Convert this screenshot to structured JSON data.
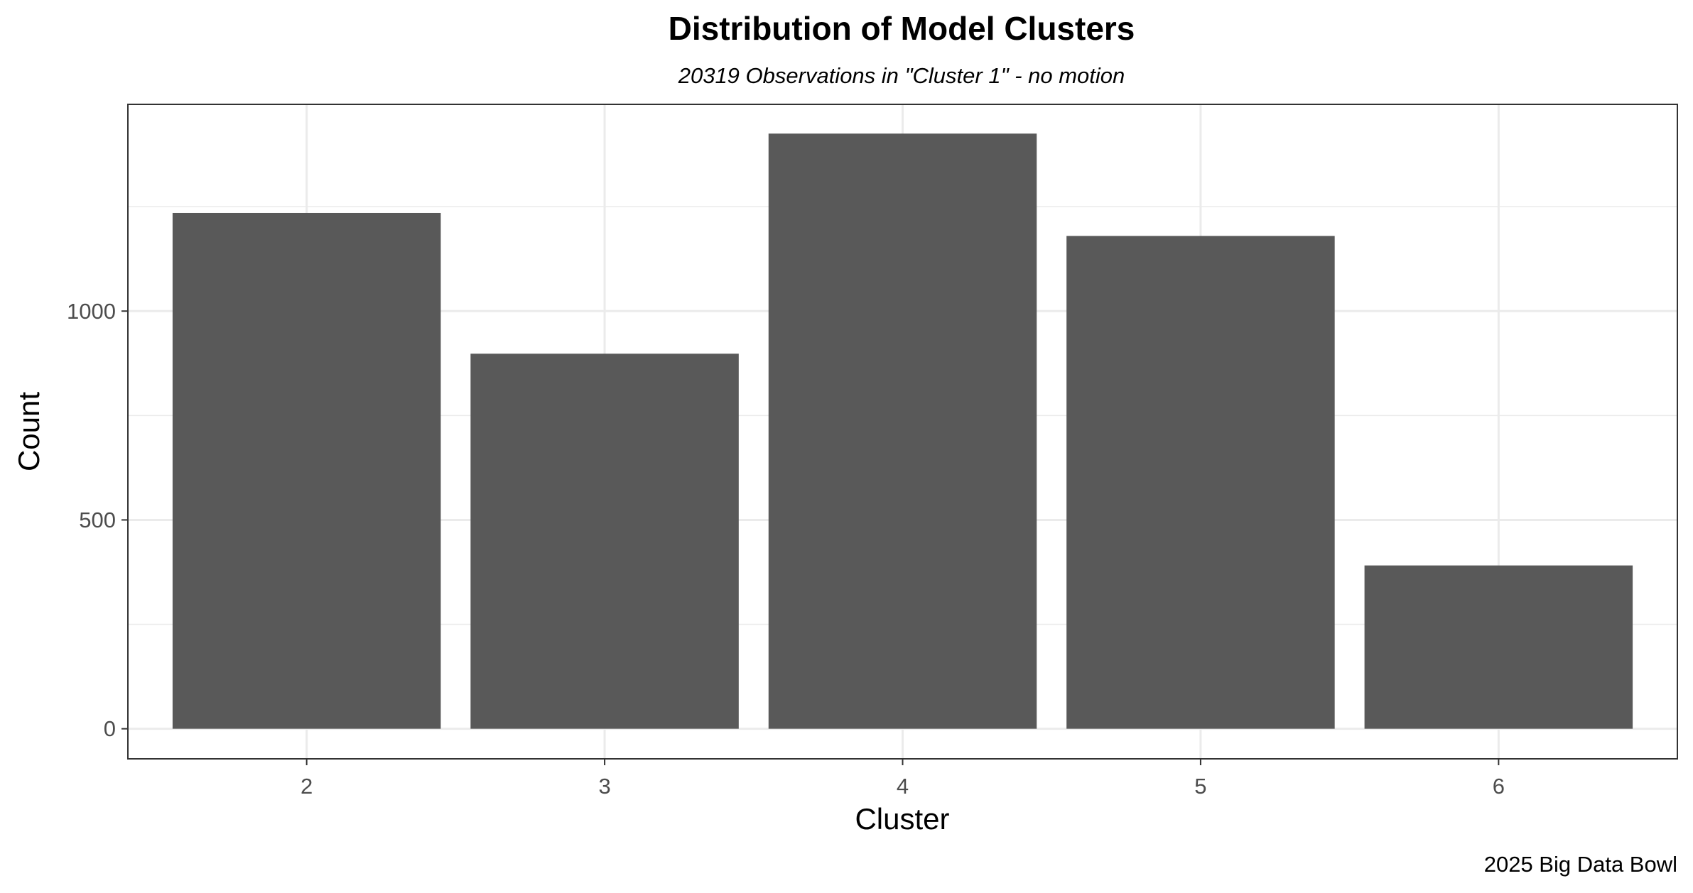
{
  "chart_data": {
    "type": "bar",
    "title": "Distribution of Model Clusters",
    "subtitle": "20319 Observations in \"Cluster 1\" - no motion",
    "caption": "2025 Big Data Bowl",
    "xlabel": "Cluster",
    "ylabel": "Count",
    "categories": [
      "2",
      "3",
      "4",
      "5",
      "6"
    ],
    "values": [
      1235,
      898,
      1425,
      1180,
      391
    ],
    "ylim": [
      -72,
      1495
    ],
    "yticks": [
      0,
      500,
      1000
    ],
    "y_minor_ticks": [
      250,
      750,
      1250
    ],
    "grid": true,
    "bar_color": "#595959",
    "grid_color": "#ebebeb",
    "panel_border_color": "#333333"
  }
}
